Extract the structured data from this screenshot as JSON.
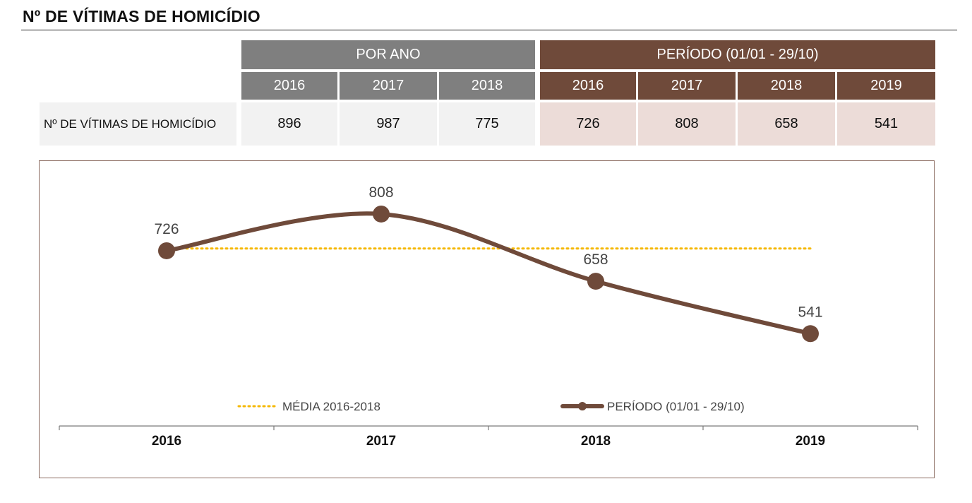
{
  "title": "Nº DE VÍTIMAS DE HOMICÍDIO",
  "table": {
    "group_por_ano": "POR ANO",
    "group_periodo": "PERÍODO (01/01 - 29/10)",
    "por_ano_years": [
      "2016",
      "2017",
      "2018"
    ],
    "periodo_years": [
      "2016",
      "2017",
      "2018",
      "2019"
    ],
    "row_label": "Nº DE VÍTIMAS DE HOMICÍDIO",
    "por_ano_values": [
      "896",
      "987",
      "775"
    ],
    "periodo_values": [
      "726",
      "808",
      "658",
      "541"
    ]
  },
  "colors": {
    "grey_header": "#7f7f7f",
    "brown_header": "#6f4a3a",
    "grey_cell": "#f2f2f2",
    "brown_cell": "#ecdcd8",
    "series_line": "#6f4a3a",
    "average_line": "#f5b800"
  },
  "chart_data": {
    "type": "line",
    "categories": [
      "2016",
      "2017",
      "2018",
      "2019"
    ],
    "series": [
      {
        "name": "PERÍODO (01/01 - 29/10)",
        "values": [
          726,
          808,
          658,
          541
        ],
        "style": "solid",
        "markers": true,
        "smooth": true
      },
      {
        "name": "MÉDIA 2016-2018",
        "values": [
          731,
          731,
          731,
          731
        ],
        "style": "dotted",
        "markers": false
      }
    ],
    "data_labels": [
      "726",
      "808",
      "658",
      "541"
    ],
    "legend": [
      "MÉDIA 2016-2018",
      "PERÍODO (01/01 - 29/10)"
    ],
    "legend_position": "bottom",
    "ylim": [
      450,
      860
    ],
    "grid": false
  }
}
